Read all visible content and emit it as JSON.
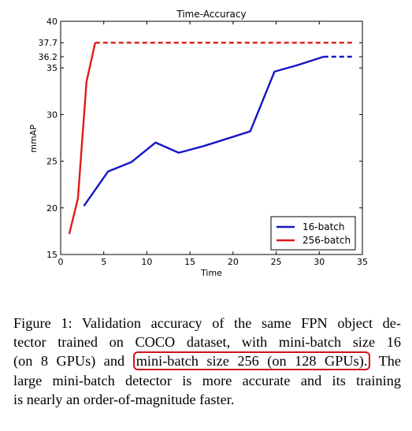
{
  "chart_data": {
    "type": "line",
    "title": "Time-Accuracy",
    "xlabel": "Time",
    "ylabel": "mmAP",
    "xlim": [
      0,
      35
    ],
    "ylim": [
      15,
      40
    ],
    "xticks": [
      "0",
      "5",
      "10",
      "15",
      "20",
      "25",
      "30",
      "35"
    ],
    "yticks": [
      "15",
      "20",
      "25",
      "30",
      "35",
      "36.2",
      "37.7",
      "40"
    ],
    "legend_position": "bottom-right",
    "grid": false,
    "series": [
      {
        "name": "16-batch",
        "color": "#1515c8",
        "x": [
          2.7,
          5.5,
          8.2,
          11,
          13.7,
          16.5,
          22,
          24.8,
          27.5,
          30.5
        ],
        "y": [
          20.2,
          23.9,
          24.9,
          27.0,
          25.9,
          26.6,
          28.2,
          34.6,
          35.3,
          36.2
        ],
        "dashed_extension": {
          "x": [
            30.5,
            34
          ],
          "y": [
            36.2,
            36.2
          ]
        }
      },
      {
        "name": "256-batch",
        "color": "#e01b1b",
        "x": [
          1,
          2,
          3,
          4
        ],
        "y": [
          17.2,
          21.0,
          33.5,
          37.7
        ],
        "dashed_extension": {
          "x": [
            4,
            34
          ],
          "y": [
            37.7,
            37.7
          ]
        }
      }
    ]
  },
  "caption": {
    "line1": "Figure 1: Validation accuracy of the same FPN object de-",
    "line2": "tector trained on COCO dataset, with mini-batch size 16",
    "line3_pre": "(on 8 GPUs) and ",
    "line3_highlight": "mini-batch size 256 (on 128 GPUs).",
    "line3_post": " The",
    "line4": "large mini-batch detector is more accurate and its training",
    "line5": "is nearly an order-of-magnitude faster.",
    "highlight_color": "#d0111b"
  }
}
